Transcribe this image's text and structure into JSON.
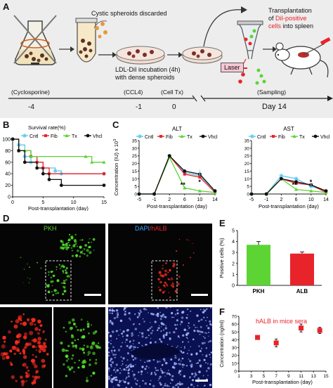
{
  "panelA": {
    "letter": "A",
    "text_discarded": "Cystic spheroids discarded",
    "text_incubation_1": "LDL-DiI incubation (4h)",
    "text_incubation_2": "with dense spheroids",
    "text_transplant_1": "Transplantation",
    "text_transplant_2a": "of ",
    "text_transplant_2b": "DiI-positive",
    "text_transplant_3a": "cells",
    "text_transplant_3b": " into spleen",
    "laser": "Laser",
    "timeline_labels": [
      "(Cyclosporine)",
      "(CCL4)",
      "(Cell Tx)",
      "(Sampling)"
    ],
    "timeline_days": [
      "-4",
      "-1",
      "0",
      "Day 14"
    ],
    "colors": {
      "dii": "#e8232a",
      "panel_bg": "#eeeeee"
    }
  },
  "panelB": {
    "letter": "B"
  },
  "panelC": {
    "letter": "C"
  },
  "panelD": {
    "letter": "D",
    "pkh": "PKH",
    "dapi": "DAPI",
    "halb": "/hALB"
  },
  "panelE": {
    "letter": "E"
  },
  "panelF": {
    "letter": "F",
    "annotation": "hALB in mice sera"
  },
  "chart_data": [
    {
      "type": "line",
      "title": "Survival rate(%)",
      "xlabel": "Post-transplantation (day)",
      "x_ticks": [
        0,
        5,
        10,
        15
      ],
      "y_ticks": [
        0,
        20,
        40,
        60,
        80,
        100
      ],
      "xlim": [
        0,
        15
      ],
      "ylim": [
        0,
        100
      ],
      "step": true,
      "legend": "top",
      "series": [
        {
          "name": "Cntl",
          "color": "#5bc8f0",
          "values": [
            [
              0,
              100
            ],
            [
              1,
              90
            ],
            [
              2,
              70
            ],
            [
              3,
              60
            ],
            [
              5,
              50
            ],
            [
              7,
              45
            ],
            [
              8,
              40
            ],
            [
              15,
              40
            ]
          ]
        },
        {
          "name": "Fib",
          "color": "#e8232a",
          "values": [
            [
              0,
              100
            ],
            [
              1,
              80
            ],
            [
              3,
              70
            ],
            [
              4,
              60
            ],
            [
              5,
              50
            ],
            [
              6,
              40
            ],
            [
              15,
              40
            ]
          ]
        },
        {
          "name": "Tx",
          "color": "#5cd433",
          "values": [
            [
              0,
              100
            ],
            [
              1,
              80
            ],
            [
              2,
              80
            ],
            [
              3,
              70
            ],
            [
              12,
              70
            ],
            [
              13,
              60
            ],
            [
              15,
              60
            ]
          ]
        },
        {
          "name": "Vhcl",
          "color": "#111111",
          "values": [
            [
              0,
              100
            ],
            [
              1,
              80
            ],
            [
              2,
              60
            ],
            [
              4,
              50
            ],
            [
              5,
              40
            ],
            [
              6,
              30
            ],
            [
              8,
              20
            ],
            [
              15,
              20
            ]
          ]
        }
      ]
    },
    {
      "type": "line",
      "title": "ALT",
      "ylabel": "Concentration (IU) x 10",
      "ylabel_sup": "3",
      "xlabel": "Post-transplantation (day)",
      "x_ticks": [
        -5,
        -1,
        2,
        6,
        10,
        14
      ],
      "y_ticks": [
        0,
        5,
        10,
        15,
        20,
        25,
        30,
        35
      ],
      "ylim": [
        0,
        35
      ],
      "legend": "top",
      "annotations": [
        "**",
        "*"
      ],
      "series": [
        {
          "name": "Cntl",
          "color": "#5bc8f0",
          "values": [
            [
              -5,
              0
            ],
            [
              -1,
              0
            ],
            [
              2,
              25
            ],
            [
              6,
              14
            ],
            [
              10,
              12
            ],
            [
              14,
              2
            ]
          ]
        },
        {
          "name": "Fib",
          "color": "#e8232a",
          "values": [
            [
              -5,
              0
            ],
            [
              -1,
              0
            ],
            [
              2,
              25
            ],
            [
              6,
              13
            ],
            [
              10,
              11
            ],
            [
              14,
              1
            ]
          ]
        },
        {
          "name": "Tx",
          "color": "#5cd433",
          "values": [
            [
              -5,
              0
            ],
            [
              -1,
              0
            ],
            [
              2,
              24
            ],
            [
              6,
              4
            ],
            [
              10,
              2
            ],
            [
              14,
              1
            ]
          ]
        },
        {
          "name": "Vhcl",
          "color": "#111111",
          "values": [
            [
              -5,
              0
            ],
            [
              -1,
              0
            ],
            [
              2,
              25
            ],
            [
              6,
              15
            ],
            [
              10,
              13
            ],
            [
              14,
              2
            ]
          ]
        }
      ]
    },
    {
      "type": "line",
      "title": "AST",
      "xlabel": "Post-transplantation (day)",
      "x_ticks": [
        -5,
        -1,
        2,
        6,
        10,
        14
      ],
      "y_ticks": [
        0,
        5,
        10,
        15,
        20,
        25,
        30,
        35
      ],
      "ylim": [
        0,
        35
      ],
      "legend": "top",
      "annotations": [
        "**",
        "*"
      ],
      "series": [
        {
          "name": "Cntl",
          "color": "#5bc8f0",
          "values": [
            [
              -5,
              0
            ],
            [
              -1,
              0
            ],
            [
              2,
              12
            ],
            [
              6,
              10
            ],
            [
              10,
              5
            ],
            [
              14,
              2
            ]
          ]
        },
        {
          "name": "Fib",
          "color": "#e8232a",
          "values": [
            [
              -5,
              0
            ],
            [
              -1,
              0
            ],
            [
              2,
              10
            ],
            [
              6,
              7
            ],
            [
              10,
              6
            ],
            [
              14,
              1
            ]
          ]
        },
        {
          "name": "Tx",
          "color": "#5cd433",
          "values": [
            [
              -5,
              0
            ],
            [
              -1,
              0
            ],
            [
              2,
              10
            ],
            [
              6,
              3
            ],
            [
              10,
              2
            ],
            [
              14,
              1
            ]
          ]
        },
        {
          "name": "Vhcl",
          "color": "#111111",
          "values": [
            [
              -5,
              0
            ],
            [
              -1,
              0
            ],
            [
              2,
              10
            ],
            [
              6,
              8
            ],
            [
              10,
              6
            ],
            [
              14,
              2
            ]
          ]
        }
      ]
    },
    {
      "type": "bar",
      "ylabel": "Positive cells (%)",
      "categories": [
        "PKH",
        "ALB"
      ],
      "values": [
        3.7,
        2.9
      ],
      "errors": [
        0.3,
        0.15
      ],
      "colors": [
        "#5cd433",
        "#e8232a"
      ],
      "y_ticks": [
        0,
        1,
        2,
        3,
        4,
        5
      ],
      "ylim": [
        0,
        5
      ]
    },
    {
      "type": "scatter",
      "ylabel": "Concentration (ng/ml)",
      "xlabel": "Post-transplantation (day)",
      "x_ticks": [
        1,
        3,
        5,
        7,
        9,
        11,
        13,
        15
      ],
      "y_ticks": [
        0,
        10,
        20,
        30,
        40,
        50,
        60,
        70
      ],
      "xlim": [
        1,
        15
      ],
      "ylim": [
        0,
        70
      ],
      "color": "#e8232a",
      "points": [
        {
          "x": 4,
          "y": 43,
          "err": 2
        },
        {
          "x": 7,
          "y": 36,
          "err": 5
        },
        {
          "x": 11,
          "y": 55,
          "err": 5
        },
        {
          "x": 14,
          "y": 52,
          "err": 4
        }
      ]
    }
  ]
}
